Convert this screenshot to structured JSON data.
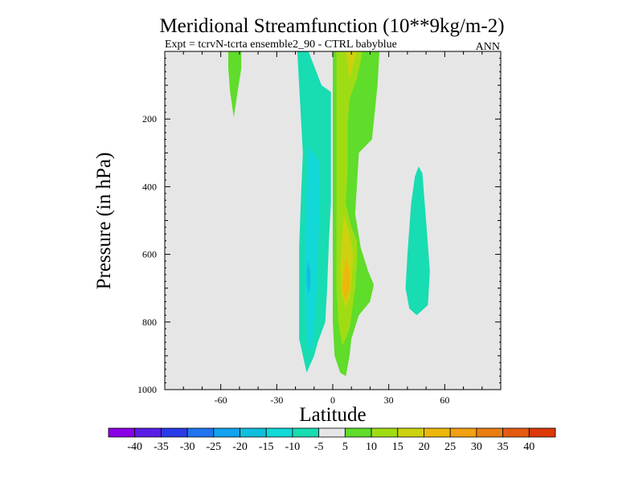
{
  "chart_data": {
    "type": "contour",
    "title": "Meridional Streamfunction (10**9kg/m-2)",
    "subtitle": "Expt = tcrvN-tcrta ensemble2_90 - CTRL babyblue",
    "season": "ANN",
    "xlabel": "Latitude",
    "ylabel": "Pressure (in hPa)",
    "x_range": [
      -90,
      90
    ],
    "y_range": [
      1000,
      0
    ],
    "x_ticks": [
      {
        "value": -60,
        "label": "-60"
      },
      {
        "value": -30,
        "label": "-30"
      },
      {
        "value": 0,
        "label": "0"
      },
      {
        "value": 30,
        "label": "30"
      },
      {
        "value": 60,
        "label": "60"
      }
    ],
    "y_ticks": [
      {
        "value": 200,
        "label": "200"
      },
      {
        "value": 400,
        "label": "400"
      },
      {
        "value": 600,
        "label": "600"
      },
      {
        "value": 800,
        "label": "800"
      },
      {
        "value": 1000,
        "label": "1000"
      }
    ],
    "background_band": {
      "range": [
        -5,
        5
      ],
      "color": "#e6e6e6"
    },
    "colorbar": {
      "colors": [
        "#8a00e6",
        "#5a1de6",
        "#2a3ae6",
        "#1f74f0",
        "#12a2ee",
        "#10bedd",
        "#12d8d8",
        "#18dcb2",
        "#e6e6e6",
        "#60dc2a",
        "#a0dc14",
        "#ccd20f",
        "#ecb80b",
        "#f0a010",
        "#ea7d10",
        "#e45a10",
        "#dd3808"
      ],
      "labels": [
        "-40",
        "-35",
        "-30",
        "-25",
        "-20",
        "-15",
        "-10",
        "-5",
        "5",
        "10",
        "15",
        "20",
        "25",
        "30",
        "35",
        "40"
      ]
    },
    "regions": [
      {
        "name": "sh-outer-negative",
        "level": "-10 to -5",
        "color": "#18dcb2",
        "points": [
          [
            -19,
            0
          ],
          [
            -13,
            0
          ],
          [
            -6,
            100
          ],
          [
            -1,
            120
          ],
          [
            -1,
            200
          ],
          [
            -1,
            350
          ],
          [
            -1,
            450
          ],
          [
            -2,
            550
          ],
          [
            -3,
            700
          ],
          [
            -4,
            800
          ],
          [
            -8,
            860
          ],
          [
            -10,
            900
          ],
          [
            -14,
            950
          ],
          [
            -18,
            850
          ],
          [
            -18,
            700
          ],
          [
            -18,
            580
          ],
          [
            -17,
            430
          ],
          [
            -16,
            300
          ],
          [
            -18,
            100
          ],
          [
            -19,
            0
          ]
        ]
      },
      {
        "name": "sh-core-negative",
        "level": "-15 to -10",
        "color": "#12d8d8",
        "points": [
          [
            -13,
            280
          ],
          [
            -7,
            330
          ],
          [
            -7,
            450
          ],
          [
            -8,
            600
          ],
          [
            -9,
            750
          ],
          [
            -11,
            870
          ],
          [
            -13,
            880
          ],
          [
            -14,
            800
          ],
          [
            -15,
            700
          ],
          [
            -15,
            550
          ],
          [
            -14,
            400
          ],
          [
            -13,
            280
          ]
        ]
      },
      {
        "name": "sh-max-negative",
        "level": "-20 to -15",
        "color": "#10bedd",
        "points": [
          [
            -13,
            620
          ],
          [
            -12,
            650
          ],
          [
            -12,
            690
          ],
          [
            -13,
            720
          ],
          [
            -14,
            680
          ],
          [
            -14,
            640
          ],
          [
            -13,
            620
          ]
        ]
      },
      {
        "name": "polar-positive",
        "level": "5 to 10",
        "color": "#60dc2a",
        "points": [
          [
            -56,
            0
          ],
          [
            -49,
            0
          ],
          [
            -49,
            50
          ],
          [
            -51,
            120
          ],
          [
            -53,
            195
          ],
          [
            -55,
            120
          ],
          [
            -56,
            50
          ],
          [
            -56,
            0
          ]
        ]
      },
      {
        "name": "tropical-positive",
        "level": "5 to 10",
        "color": "#60dc2a",
        "points": [
          [
            0,
            0
          ],
          [
            25,
            0
          ],
          [
            24,
            100
          ],
          [
            21,
            260
          ],
          [
            14,
            300
          ],
          [
            12,
            480
          ],
          [
            15,
            580
          ],
          [
            19,
            650
          ],
          [
            22,
            690
          ],
          [
            20,
            740
          ],
          [
            14,
            780
          ],
          [
            10,
            850
          ],
          [
            9,
            900
          ],
          [
            7,
            960
          ],
          [
            4,
            950
          ],
          [
            1,
            900
          ],
          [
            0,
            800
          ],
          [
            0,
            600
          ],
          [
            0,
            400
          ],
          [
            0,
            200
          ],
          [
            0,
            0
          ]
        ]
      },
      {
        "name": "tropical-core",
        "level": "10 to 15",
        "color": "#a0dc14",
        "points": [
          [
            2,
            0
          ],
          [
            16,
            0
          ],
          [
            13,
            80
          ],
          [
            9,
            140
          ],
          [
            8,
            210
          ],
          [
            8,
            350
          ],
          [
            7,
            450
          ],
          [
            10,
            520
          ],
          [
            13,
            560
          ],
          [
            13,
            620
          ],
          [
            12,
            700
          ],
          [
            10,
            780
          ],
          [
            9,
            820
          ],
          [
            7,
            850
          ],
          [
            5,
            870
          ],
          [
            3,
            800
          ],
          [
            2,
            700
          ],
          [
            2,
            500
          ],
          [
            2,
            300
          ],
          [
            2,
            100
          ],
          [
            2,
            0
          ]
        ]
      },
      {
        "name": "tropical-high",
        "level": "15 to 20",
        "color": "#ccd20f",
        "points": [
          [
            6,
            480
          ],
          [
            9,
            540
          ],
          [
            11,
            600
          ],
          [
            10,
            680
          ],
          [
            9,
            730
          ],
          [
            7,
            760
          ],
          [
            5,
            720
          ],
          [
            4,
            640
          ],
          [
            5,
            560
          ],
          [
            6,
            480
          ]
        ]
      },
      {
        "name": "tropical-top",
        "level": "15 to 20",
        "color": "#ccd20f",
        "points": [
          [
            7,
            0
          ],
          [
            13,
            0
          ],
          [
            11,
            40
          ],
          [
            9,
            80
          ],
          [
            8,
            40
          ],
          [
            7,
            0
          ]
        ]
      },
      {
        "name": "tropical-max",
        "level": "20 to 25",
        "color": "#ecb80b",
        "points": [
          [
            7,
            610
          ],
          [
            9,
            650
          ],
          [
            9,
            700
          ],
          [
            7,
            740
          ],
          [
            5,
            700
          ],
          [
            6,
            650
          ],
          [
            7,
            610
          ]
        ]
      },
      {
        "name": "nh-negative",
        "level": "-10 to -5",
        "color": "#18dcb2",
        "points": [
          [
            46,
            340
          ],
          [
            48,
            360
          ],
          [
            50,
            500
          ],
          [
            52,
            650
          ],
          [
            51,
            750
          ],
          [
            45,
            780
          ],
          [
            41,
            760
          ],
          [
            39,
            700
          ],
          [
            40,
            600
          ],
          [
            42,
            450
          ],
          [
            44,
            370
          ],
          [
            46,
            340
          ]
        ]
      }
    ]
  }
}
